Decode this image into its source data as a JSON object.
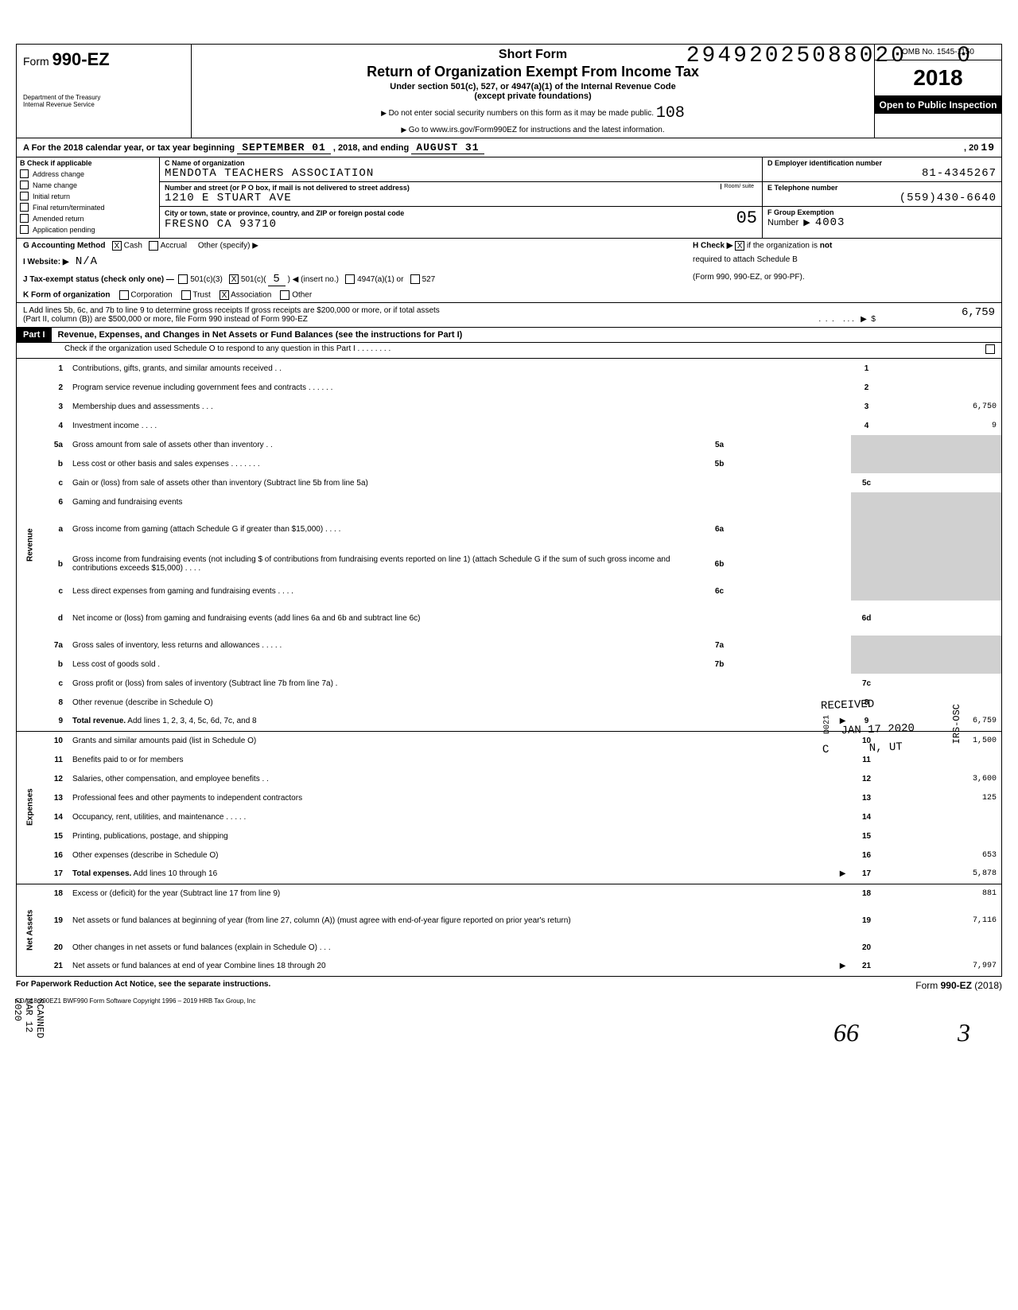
{
  "stamps": {
    "top_number": "29492025088020",
    "top_zero": "0",
    "stamp108": "108",
    "stamp05": "05",
    "received": "RECEIVED",
    "received_date": "JAN 17 2020",
    "received_loc": "N, UT",
    "received_c": "C",
    "irs_osc": "IRS-OSC",
    "d021": "D021",
    "scanned": "SCANNED MAR 12 2020",
    "sig66": "66",
    "sig3": "3"
  },
  "header": {
    "form_label": "Form",
    "form_number": "990-EZ",
    "dept1": "Department of the Treasury",
    "dept2": "Internal Revenue Service",
    "short_form": "Short Form",
    "title": "Return of Organization Exempt From Income Tax",
    "sub1": "Under section 501(c), 527, or 4947(a)(1) of the Internal Revenue Code",
    "sub2": "(except private foundations)",
    "warn": "Do not enter social security numbers on this form as it may be made public.",
    "goto": "Go to www.irs.gov/Form990EZ for instructions and the latest information.",
    "omb": "OMB No. 1545-1150",
    "year": "2018",
    "open": "Open to Public Inspection"
  },
  "row_a": {
    "prefix": "A  For the 2018 calendar year, or tax year beginning",
    "begin": "SEPTEMBER 01",
    "mid": ", 2018, and ending",
    "end": "AUGUST 31",
    "suffix": ", 20",
    "yy": "19"
  },
  "section_b": {
    "header": "B  Check if applicable",
    "items": [
      "Address change",
      "Name change",
      "Initial return",
      "Final return/terminated",
      "Amended return",
      "Application pending"
    ]
  },
  "section_c": {
    "label": "C  Name of organization",
    "org_name": "MENDOTA TEACHERS ASSOCIATION",
    "street_label": "Number and street (or P O  box, if mail is not delivered to street address)",
    "room_label": "Room/\nsuite",
    "street": "1210 E STUART AVE",
    "city_label": "City or town, state or province, country, and ZIP or foreign postal code",
    "city": "FRESNO CA 93710"
  },
  "section_d": {
    "label": "D  Employer identification number",
    "ein": "81-4345267"
  },
  "section_e": {
    "label": "E  Telephone number",
    "phone": "(559)430-6640"
  },
  "section_f": {
    "label": "F  Group Exemption",
    "label2": "Number",
    "value": "4003"
  },
  "meta": {
    "g_label": "G  Accounting Method",
    "g_cash": "Cash",
    "g_accrual": "Accrual",
    "g_other": "Other (specify) ▶",
    "h_label": "H  Check ▶",
    "h_text": "if the organization is not required to attach Schedule B (Form 990, 990-EZ, or 990-PF).",
    "i_label": "I   Website: ▶",
    "i_value": "N/A",
    "j_label": "J   Tax-exempt status (check only one) —",
    "j_501c3": "501(c)(3)",
    "j_501c": "501(c)(",
    "j_insert": "5",
    "j_insert_text": ") ◀ (insert no.)",
    "j_4947": "4947(a)(1) or",
    "j_527": "527",
    "k_label": "K  Form of organization",
    "k_corp": "Corporation",
    "k_trust": "Trust",
    "k_assoc": "Association",
    "k_other": "Other",
    "l_text1": "L  Add lines 5b, 6c, and 7b to line 9 to determine gross receipts  If gross receipts are $200,000 or more, or if total assets",
    "l_text2": "(Part II, column (B)) are $500,000 or more, file Form 990 instead of Form 990-EZ",
    "l_amount": "6,759"
  },
  "part1": {
    "label": "Part I",
    "title": "Revenue, Expenses, and Changes in Net Assets or Fund Balances (see the instructions for Part I)",
    "check_line": "Check if the organization used Schedule O to respond to any question in this Part I . . . . . . . ."
  },
  "side_labels": {
    "revenue": "Revenue",
    "expenses": "Expenses",
    "netassets": "Net Assets"
  },
  "lines": [
    {
      "n": "1",
      "desc": "Contributions, gifts, grants, and similar amounts received    .   .",
      "rnum": "1",
      "rval": "",
      "section": "rev"
    },
    {
      "n": "2",
      "desc": "Program service revenue including government fees and contracts     . .   . . .   .",
      "rnum": "2",
      "rval": "",
      "section": "rev"
    },
    {
      "n": "3",
      "desc": "Membership dues and assessments . . .",
      "rnum": "3",
      "rval": "6,750",
      "section": "rev"
    },
    {
      "n": "4",
      "desc": "Investment income     .   .  . .",
      "rnum": "4",
      "rval": "9",
      "section": "rev"
    },
    {
      "n": "5a",
      "desc": "Gross amount from sale of assets other than inventory .  .",
      "mid": "5a",
      "section": "rev",
      "shade": true
    },
    {
      "n": "b",
      "desc": "Less  cost or other basis and sales expenses     . . . . . . .",
      "mid": "5b",
      "section": "rev",
      "shade": true
    },
    {
      "n": "c",
      "desc": "Gain or (loss) from sale of assets other than inventory (Subtract line 5b from line 5a)",
      "rnum": "5c",
      "rval": "",
      "section": "rev"
    },
    {
      "n": "6",
      "desc": "Gaming and fundraising events",
      "section": "rev",
      "shade": true,
      "noright": true
    },
    {
      "n": "a",
      "desc": "Gross income from gaming (attach Schedule G if greater than $15,000) .      .  .  .",
      "mid": "6a",
      "section": "rev",
      "shade": true,
      "tall": true
    },
    {
      "n": "b",
      "desc": "Gross income from fundraising events (not including   $                             of contributions from fundraising events reported on line 1) (attach Schedule G if the sum of such gross income and contributions exceeds $15,000)  . . . .",
      "mid": "6b",
      "section": "rev",
      "shade": true,
      "tall": true
    },
    {
      "n": "c",
      "desc": "Less  direct expenses from gaming and fundraising events       . . . .",
      "mid": "6c",
      "section": "rev",
      "shade": true
    },
    {
      "n": "d",
      "desc": "Net income or (loss) from gaming and fundraising events (add lines 6a and 6b and subtract line 6c)",
      "rnum": "6d",
      "rval": "",
      "section": "rev",
      "tall": true
    },
    {
      "n": "7a",
      "desc": "Gross sales of inventory, less returns and allowances . . . . .",
      "mid": "7a",
      "section": "rev",
      "shade": true
    },
    {
      "n": "b",
      "desc": "Less  cost of goods sold .",
      "mid": "7b",
      "section": "rev",
      "shade": true
    },
    {
      "n": "c",
      "desc": "Gross profit or (loss) from sales of inventory (Subtract line 7b from line 7a)   .",
      "rnum": "7c",
      "rval": "",
      "section": "rev"
    },
    {
      "n": "8",
      "desc": "Other revenue (describe in Schedule O)",
      "rnum": "8",
      "rval": "",
      "section": "rev"
    },
    {
      "n": "9",
      "desc": "Total revenue. Add lines 1, 2, 3, 4, 5c, 6d, 7c, and 8",
      "rnum": "9",
      "rval": "6,759",
      "section": "rev",
      "bold": true,
      "arrow": true
    },
    {
      "n": "10",
      "desc": "Grants and similar amounts paid (list in Schedule O)",
      "rnum": "10",
      "rval": "1,500",
      "section": "exp"
    },
    {
      "n": "11",
      "desc": "Benefits paid to or for members",
      "rnum": "11",
      "rval": "",
      "section": "exp"
    },
    {
      "n": "12",
      "desc": "Salaries, other compensation, and employee benefits    .  .",
      "rnum": "12",
      "rval": "3,600",
      "section": "exp"
    },
    {
      "n": "13",
      "desc": "Professional fees and other payments to independent contractors",
      "rnum": "13",
      "rval": "125",
      "section": "exp"
    },
    {
      "n": "14",
      "desc": "Occupancy, rent, utilities, and maintenance .  .  .  . .",
      "rnum": "14",
      "rval": "",
      "section": "exp"
    },
    {
      "n": "15",
      "desc": "Printing, publications, postage, and shipping",
      "rnum": "15",
      "rval": "",
      "section": "exp"
    },
    {
      "n": "16",
      "desc": "Other expenses (describe in Schedule O)",
      "rnum": "16",
      "rval": "653",
      "section": "exp"
    },
    {
      "n": "17",
      "desc": "Total expenses. Add lines 10 through 16",
      "rnum": "17",
      "rval": "5,878",
      "section": "exp",
      "bold": true,
      "arrow": true
    },
    {
      "n": "18",
      "desc": "Excess or (deficit) for the year (Subtract line 17 from line 9)",
      "rnum": "18",
      "rval": "881",
      "section": "net"
    },
    {
      "n": "19",
      "desc": "Net assets or fund balances at beginning of year (from line 27, column (A)) (must agree with end-of-year figure reported on prior year's return)",
      "rnum": "19",
      "rval": "7,116",
      "section": "net",
      "tall": true
    },
    {
      "n": "20",
      "desc": "Other changes in net assets or fund balances (explain in Schedule O)    . . .",
      "rnum": "20",
      "rval": "",
      "section": "net"
    },
    {
      "n": "21",
      "desc": "Net assets or fund balances at end of year  Combine lines 18 through 20",
      "rnum": "21",
      "rval": "7,997",
      "section": "net",
      "arrow": true
    }
  ],
  "footer": {
    "left": "For Paperwork Reduction Act Notice, see the separate instructions.",
    "right": "Form 990-EZ (2018)",
    "fda": "FDA     18   990EZ1      BWF990     Form Software Copyright 1996 – 2019 HRB Tax Group, Inc"
  }
}
